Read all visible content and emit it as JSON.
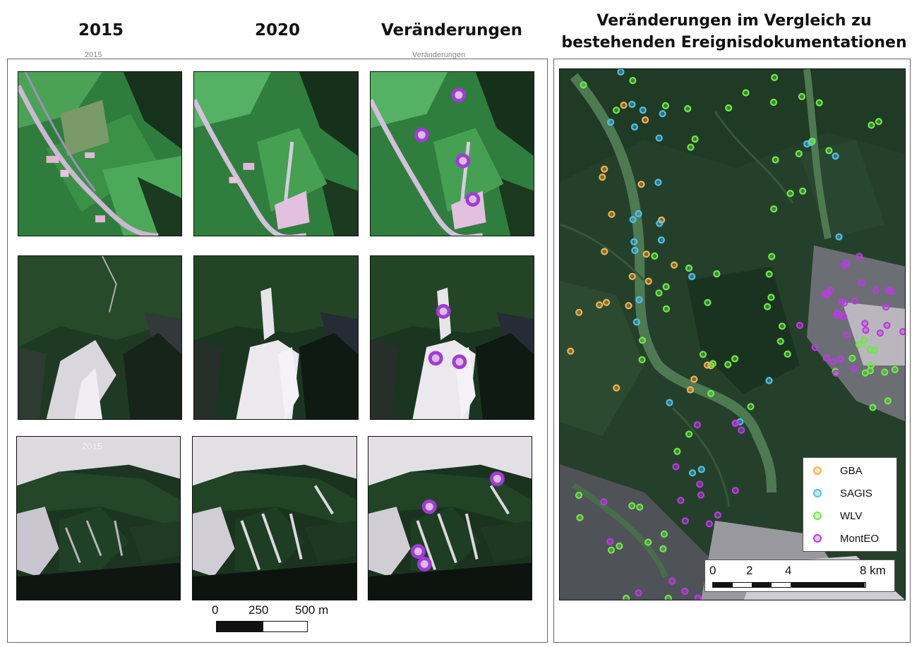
{
  "headers": {
    "col_2015": "2015",
    "col_2020": "2020",
    "col_changes": "Veränderungen",
    "col_comparison": "Veränderungen im Vergleich zu bestehenden Ereignisdokumentationen"
  },
  "ghost_labels": {
    "left": "2015",
    "right": "Veränderungen"
  },
  "tile_label": "2015",
  "scale_small": {
    "ticks": [
      "0",
      "250",
      "500 m"
    ]
  },
  "legend": [
    {
      "label": "GBA",
      "color": "#f0b24a"
    },
    {
      "label": "SAGIS",
      "color": "#4fc0e8"
    },
    {
      "label": "WLV",
      "color": "#6ee848"
    },
    {
      "label": "MontEO",
      "color": "#b83ce0"
    }
  ],
  "scale_km": {
    "ticks": [
      "0",
      "2",
      "4",
      "8 km"
    ]
  },
  "colors": {
    "marker_purple": "#a23bd6",
    "meadow_green": "#3f9a48",
    "forest_dark": "#1d3520",
    "debris_light": "#e4e0e8"
  },
  "icons": {
    "change_marker": "purple-circle-icon",
    "legend_marker": "ring-icon"
  }
}
